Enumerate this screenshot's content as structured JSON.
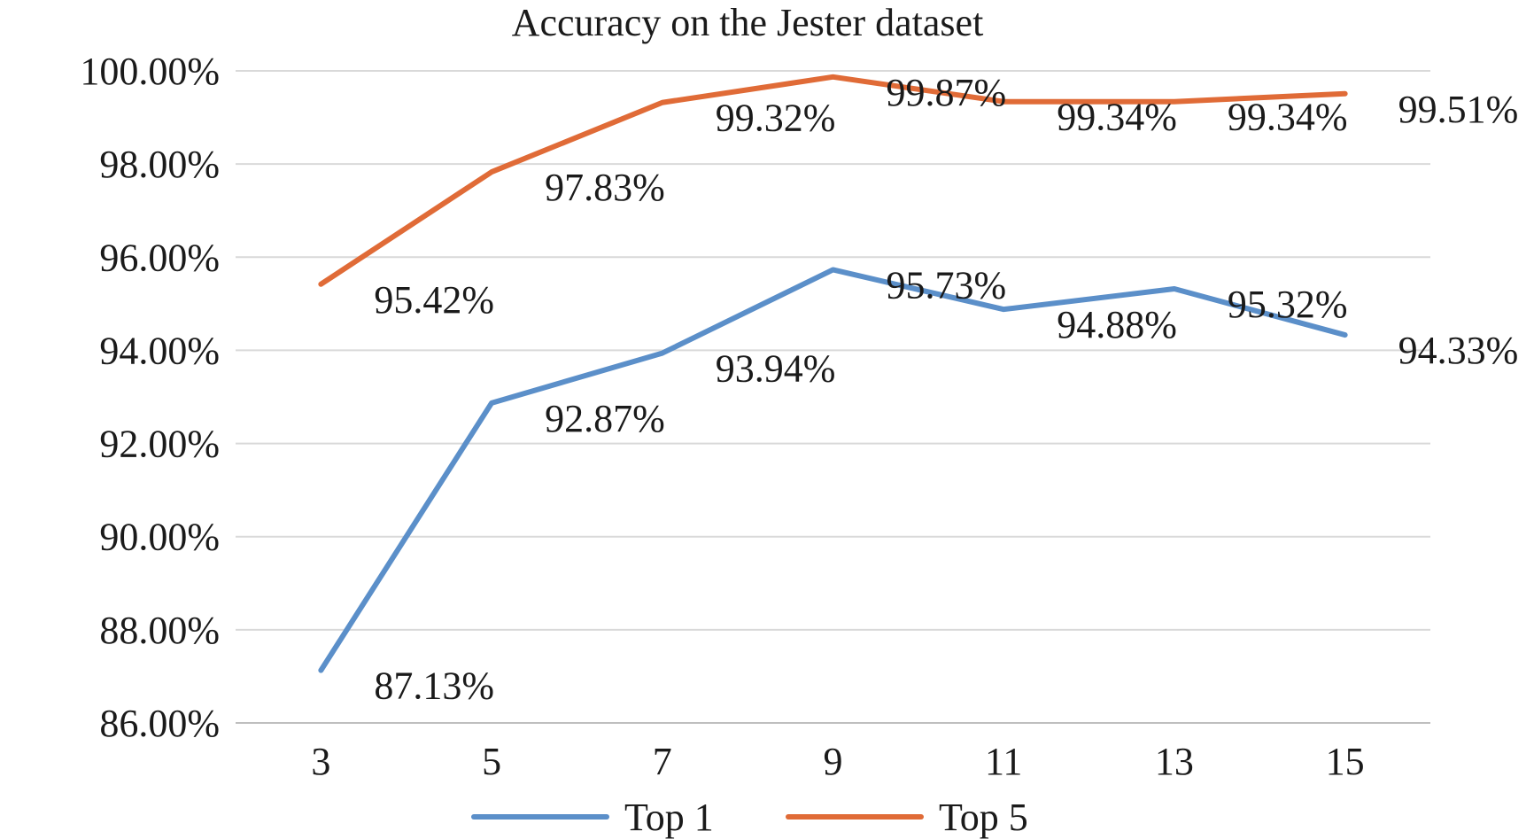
{
  "chart_data": {
    "type": "line",
    "title": "Accuracy on the Jester dataset",
    "xlabel": "",
    "ylabel": "",
    "x": [
      3,
      5,
      7,
      9,
      11,
      13,
      15
    ],
    "x_tick_labels": [
      "3",
      "5",
      "7",
      "9",
      "11",
      "13",
      "15"
    ],
    "ylim": [
      86,
      100
    ],
    "y_ticks": [
      86,
      88,
      90,
      92,
      94,
      96,
      98,
      100
    ],
    "y_tick_labels": [
      "86.00%",
      "88.00%",
      "90.00%",
      "92.00%",
      "94.00%",
      "96.00%",
      "98.00%",
      "100.00%"
    ],
    "grid": true,
    "legend_position": "bottom",
    "series": [
      {
        "name": "Top 1",
        "color": "#5b8fc9",
        "values": [
          87.13,
          92.87,
          93.94,
          95.73,
          94.88,
          95.32,
          94.33
        ],
        "data_labels": [
          "87.13%",
          "92.87%",
          "93.94%",
          "95.73%",
          "94.88%",
          "95.32%",
          "94.33%"
        ]
      },
      {
        "name": "Top 5",
        "color": "#e06b37",
        "values": [
          95.42,
          97.83,
          99.32,
          99.87,
          99.34,
          99.34,
          99.51
        ],
        "data_labels": [
          "95.42%",
          "97.83%",
          "99.32%",
          "99.87%",
          "99.34%",
          "99.34%",
          "99.51%"
        ]
      }
    ]
  }
}
